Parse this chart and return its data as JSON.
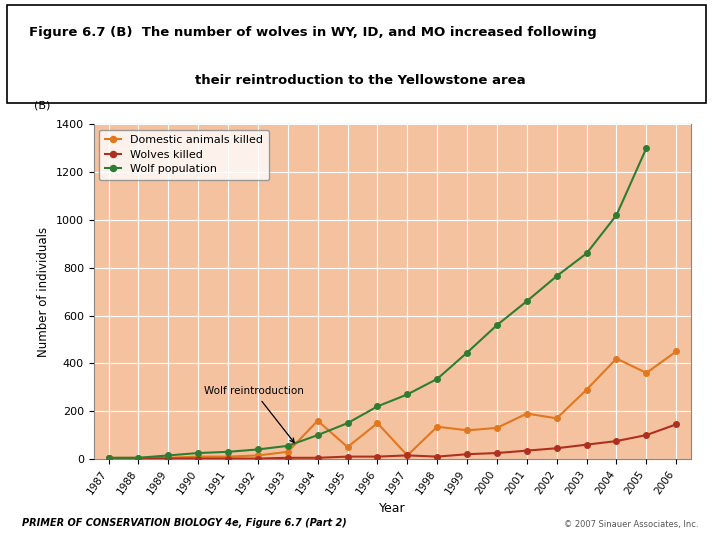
{
  "title_line1": "Figure 6.7 (B)  The number of wolves in WY, ID, and MO increased following",
  "title_line2": "their reintroduction to the Yellowstone area",
  "subtitle_label": "(B)",
  "xlabel": "Year",
  "ylabel": "Number of individuals",
  "years": [
    1987,
    1988,
    1989,
    1990,
    1991,
    1992,
    1993,
    1994,
    1995,
    1996,
    1997,
    1998,
    1999,
    2000,
    2001,
    2002,
    2003,
    2004,
    2005,
    2006
  ],
  "domestic_killed": [
    5,
    5,
    5,
    10,
    10,
    15,
    30,
    160,
    50,
    150,
    15,
    135,
    120,
    130,
    190,
    170,
    290,
    420,
    360,
    450
  ],
  "wolves_killed": [
    3,
    2,
    2,
    2,
    2,
    2,
    5,
    5,
    10,
    10,
    15,
    10,
    20,
    25,
    35,
    45,
    60,
    75,
    100,
    145
  ],
  "wolf_population": [
    5,
    5,
    15,
    25,
    30,
    40,
    55,
    100,
    150,
    220,
    270,
    335,
    445,
    560,
    660,
    765,
    860,
    1020,
    1300,
    null
  ],
  "annotation_text": "Wolf reintroduction",
  "ylim": [
    0,
    1400
  ],
  "yticks": [
    0,
    200,
    400,
    600,
    800,
    1000,
    1200,
    1400
  ],
  "bg_color": "#F5C2A0",
  "grid_color": "#FFFFFF",
  "domestic_color": "#E07820",
  "wolves_killed_color": "#B03020",
  "wolf_pop_color": "#2E7D32",
  "footer_text": "PRIMER OF CONSERVATION BIOLOGY 4e, Figure 6.7 (Part 2)",
  "footer_right": "© 2007 Sinauer Associates, Inc."
}
